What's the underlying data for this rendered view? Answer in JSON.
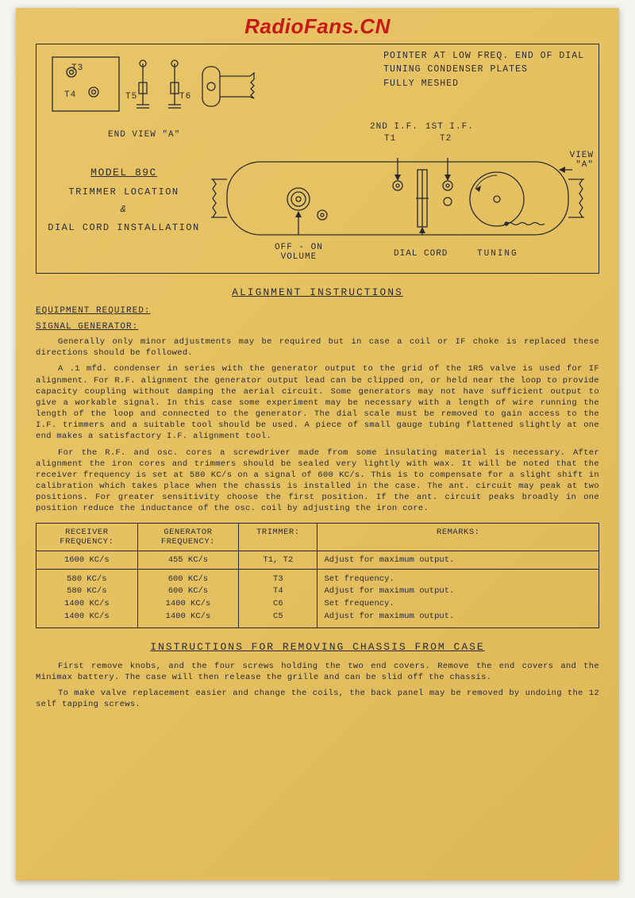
{
  "watermark": "RadioFans.CN",
  "colors": {
    "paper_bg": "#e5c060",
    "ink": "#2a2a35",
    "watermark": "#c81818"
  },
  "diagram": {
    "pointer_line1": "POINTER AT LOW FREQ. END OF DIAL",
    "pointer_line2": "TUNING CONDENSER PLATES",
    "pointer_line3": "FULLY  MESHED",
    "t3": "T3",
    "t4": "T4",
    "t5": "T5",
    "t6": "T6",
    "end_view": "END VIEW \"A\"",
    "model": "MODEL  89C",
    "trimmer_loc": "TRIMMER  LOCATION",
    "amp": "&",
    "dial_install": "DIAL CORD   INSTALLATION",
    "if2": "2ND I.F.",
    "if2_t": "T1",
    "if1": "1ST I.F.",
    "if1_t": "T2",
    "view_a": "VIEW",
    "view_a2": "\"A\"",
    "off_on": "OFF - ON",
    "volume": "VOLUME",
    "dial_cord": "DIAL CORD",
    "tuning": "TUNING"
  },
  "sections": {
    "alignment_title": "ALIGNMENT INSTRUCTIONS",
    "equipment": "EQUIPMENT REQUIRED:",
    "siggen": "SIGNAL GENERATOR:",
    "para1": "Generally only minor adjustments may be required but in case a coil or IF choke is replaced these directions should be followed.",
    "para2": "A .1 mfd.  condenser in series  with the generator output  to the grid of the 1R5 valve  is used for  IF alignment. For R.F. alignment the generator output lead can be clipped on, or held near the loop to provide capacity coupling without damping the aerial circuit.    Some generators may not have sufficient output  to give a workable signal.    In this case some experiment may be necessary with a length of wire  running the length of the loop and connected to the generator.    The dial scale must be removed to gain access to the I.F. trimmers and a suitable tool should be used.    A piece of small gauge tubing flattened slightly at one end makes a satisfactory I.F. alignment tool.",
    "para3": "For the R.F. and osc. cores  a screwdriver  made from some insulating material  is necessary.    After alignment the iron cores and trimmers should be sealed very lightly with wax.    It will be noted that the receiver frequency is set at 580 KC/s on a signal of 600 KC/s.    This is to compensate for a slight shift in calibration  which takes place when the chassis is installed in the case.    The ant. circuit may peak  at two positions.    For greater sensitivity  choose the first position.    If the ant. circuit peaks broadly in one position reduce the inductance of the osc. coil by adjusting the iron core.",
    "chassis_title": "INSTRUCTIONS FOR REMOVING CHASSIS FROM CASE",
    "chassis_p1": "First remove knobs, and the four screws holding the two end covers.  Remove the end covers and the Minimax battery. The case will then release the grille and can be slid off the chassis.",
    "chassis_p2": "To make valve  replacement  easier  and change the coils,  the back panel  may be removed  by undoing  the  12 self tapping screws."
  },
  "table": {
    "headers": {
      "receiver": "RECEIVER FREQUENCY:",
      "generator": "GENERATOR FREQUENCY:",
      "trimmer": "TRIMMER:",
      "remarks": "REMARKS:"
    },
    "row1": {
      "rx": "1600 KC/s",
      "gen": "455 KC/s",
      "trim": "T1, T2",
      "remark": "Adjust for maximum output."
    },
    "row2": {
      "rx": "580 KC/s\n580 KC/s\n1400 KC/s\n1400 KC/s",
      "gen": "600 KC/s\n600 KC/s\n1400 KC/s\n1400 KC/s",
      "trim": "T3\nT4\nC6\nC5",
      "remark": "Set frequency.\nAdjust for maximum output.\nSet frequency.\nAdjust for maximum output."
    }
  }
}
